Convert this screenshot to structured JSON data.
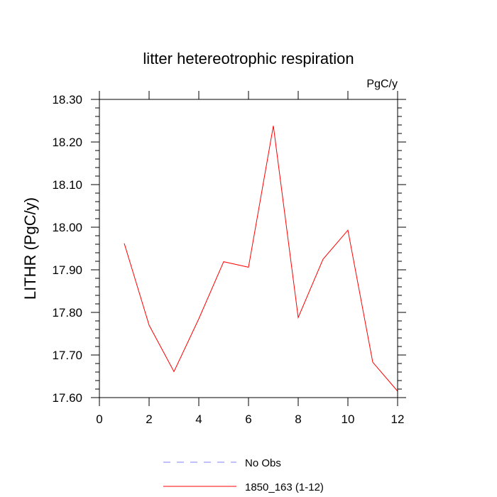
{
  "chart_data": {
    "type": "line",
    "title": "litter hetereotrophic respiration",
    "units_label": "PgC/y",
    "ylabel": "LITHR  (PgC/y)",
    "xlabel": "",
    "xlim": [
      0,
      12
    ],
    "ylim": [
      17.6,
      18.3
    ],
    "x_ticks": [
      0,
      2,
      4,
      6,
      8,
      10,
      12
    ],
    "y_ticks": [
      17.6,
      17.7,
      17.8,
      17.9,
      18.0,
      18.1,
      18.2,
      18.3
    ],
    "x_tick_labels": [
      "0",
      "2",
      "4",
      "6",
      "8",
      "10",
      "12"
    ],
    "y_tick_labels": [
      "17.60",
      "17.70",
      "17.80",
      "17.90",
      "18.00",
      "18.10",
      "18.20",
      "18.30"
    ],
    "grid": false,
    "legend_position": "bottom",
    "series": [
      {
        "name": "1850_163 (1-12)",
        "color": "#ff0000",
        "dash": "solid",
        "x": [
          1,
          2,
          3,
          4,
          5,
          6,
          7,
          8,
          9,
          10,
          11,
          12
        ],
        "y": [
          17.962,
          17.77,
          17.661,
          17.785,
          17.919,
          17.906,
          18.238,
          17.788,
          17.925,
          17.993,
          17.683,
          17.615
        ]
      }
    ],
    "legend": [
      {
        "label": "No Obs",
        "color": "#8080ff",
        "dash": "dashed"
      },
      {
        "label": "1850_163 (1-12)",
        "color": "#ff0000",
        "dash": "solid"
      }
    ]
  }
}
